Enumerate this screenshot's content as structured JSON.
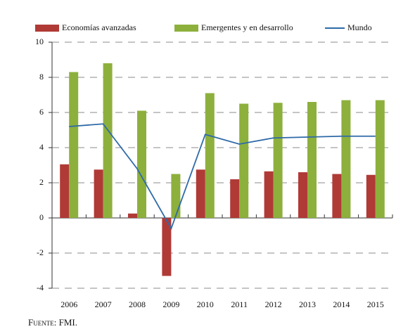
{
  "chart_data": {
    "type": "bar",
    "categories": [
      "2006",
      "2007",
      "2008",
      "2009",
      "2010",
      "2011",
      "2012",
      "2013",
      "2014",
      "2015"
    ],
    "series": [
      {
        "name": "Economías avanzadas",
        "color": "#b03a36",
        "type": "bar",
        "values": [
          3.05,
          2.75,
          0.25,
          -3.3,
          2.75,
          2.2,
          2.65,
          2.6,
          2.5,
          2.45
        ]
      },
      {
        "name": "Emergentes y en desarrollo",
        "color": "#8db03c",
        "type": "bar",
        "values": [
          8.3,
          8.8,
          6.1,
          2.5,
          7.1,
          6.5,
          6.55,
          6.6,
          6.7,
          6.7
        ]
      },
      {
        "name": "Mundo",
        "color": "#2e6aa8",
        "type": "line",
        "values": [
          5.2,
          5.35,
          2.8,
          -0.6,
          4.75,
          4.2,
          4.55,
          4.6,
          4.65,
          4.65
        ]
      }
    ],
    "ylim": [
      -4,
      10
    ],
    "yticks": [
      -4,
      -2,
      0,
      2,
      4,
      6,
      8,
      10
    ],
    "grid": true,
    "legend": "top",
    "source": "Fuente: FMI."
  }
}
